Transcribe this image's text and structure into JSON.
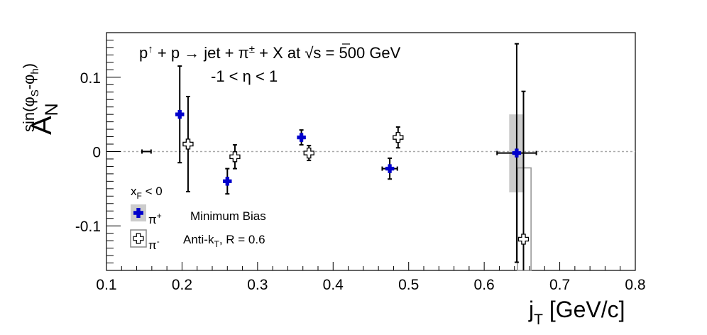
{
  "chart_data": {
    "type": "scatter",
    "title_line1": "+ p → jet + π",
    "title_line1_parts": {
      "p": "p",
      "up": "↑",
      "rest": " + p → jet + π",
      "pm": "±",
      "rest2": " + X at ",
      "sqrt_s": "s",
      "energy": " = 500 GeV"
    },
    "title_line2": "-1 < η < 1",
    "xlabel": {
      "main": "j",
      "sub": "T",
      "unit": " [GeV/c]"
    },
    "ylabel": {
      "main": "A",
      "sub": "N",
      "sup": "sin(φ",
      "sup_s": "S",
      "sup_mid": "-φ",
      "sup_h": "h",
      "sup_end": ")"
    },
    "xlim": [
      0.1,
      0.8
    ],
    "ylim": [
      -0.16,
      0.16
    ],
    "xticks": [
      "0.1",
      "0.2",
      "0.3",
      "0.4",
      "0.5",
      "0.6",
      "0.7",
      "0.8"
    ],
    "xtick_values": [
      0.1,
      0.2,
      0.3,
      0.4,
      0.5,
      0.6,
      0.7,
      0.8
    ],
    "yticks": [
      "-0.1",
      "0",
      "0.1"
    ],
    "ytick_values": [
      -0.1,
      0,
      0.1
    ],
    "zero_line": true,
    "series": [
      {
        "name": "π+",
        "color": "#0000cc",
        "marker": "filled-cross",
        "points": [
          {
            "x": 0.197,
            "y": 0.05,
            "yerr": 0.065,
            "xerr": 0
          },
          {
            "x": 0.26,
            "y": -0.04,
            "yerr": 0.017,
            "xerr": 0
          },
          {
            "x": 0.358,
            "y": 0.019,
            "yerr": 0.01,
            "xerr": 0
          },
          {
            "x": 0.475,
            "y": -0.023,
            "yerr": 0.014,
            "xerr": 0.01
          },
          {
            "x": 0.643,
            "y": -0.002,
            "yerr": 0.147,
            "xerr": 0.026
          }
        ]
      },
      {
        "name": "π-",
        "color": "#000000",
        "marker": "open-cross",
        "points": [
          {
            "x": 0.208,
            "y": 0.01,
            "yerr": 0.064,
            "xerr": 0
          },
          {
            "x": 0.27,
            "y": -0.007,
            "yerr": 0.016,
            "xerr": 0
          },
          {
            "x": 0.368,
            "y": -0.002,
            "yerr": 0.01,
            "xerr": 0
          },
          {
            "x": 0.486,
            "y": 0.019,
            "yerr": 0.014,
            "xerr": 0
          },
          {
            "x": 0.652,
            "y": -0.118,
            "yerr": 0.199,
            "xerr": 0
          }
        ]
      }
    ],
    "extra_errorbars": [
      {
        "x": 0.153,
        "y": 0.0,
        "xerr": 0.006
      }
    ],
    "systematic_boxes": [
      {
        "series": "π+",
        "x0": 0.633,
        "x1": 0.653,
        "y0": -0.055,
        "y1": 0.05,
        "style": "filled-gray"
      },
      {
        "series": "π-",
        "x0": 0.644,
        "x1": 0.662,
        "y0": -0.22,
        "y1": -0.022,
        "style": "open-gray"
      },
      {
        "series": "π-",
        "x0": 0.482,
        "x1": 0.49,
        "y0": 0.014,
        "y1": 0.024,
        "style": "filled-gray"
      },
      {
        "series": "π-",
        "x0": 0.204,
        "x1": 0.212,
        "y0": 0.006,
        "y1": 0.014,
        "style": "filled-gray"
      }
    ],
    "legend": {
      "header": {
        "main": "x",
        "sub": "F",
        "rest": " < 0"
      },
      "entries": [
        {
          "label_main": "π",
          "label_sup": "+",
          "text": "Minimum Bias"
        },
        {
          "label_main": "π",
          "label_sup": "-",
          "text_main": "Anti-k",
          "text_sub": "T",
          "text_rest": ", R = 0.6"
        }
      ],
      "placement": "bottom-left"
    }
  }
}
